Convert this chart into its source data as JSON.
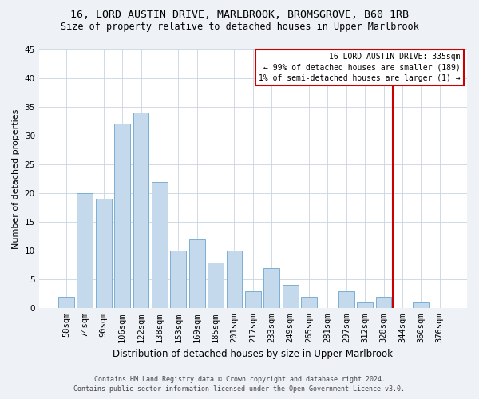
{
  "title1": "16, LORD AUSTIN DRIVE, MARLBROOK, BROMSGROVE, B60 1RB",
  "title2": "Size of property relative to detached houses in Upper Marlbrook",
  "xlabel": "Distribution of detached houses by size in Upper Marlbrook",
  "ylabel": "Number of detached properties",
  "categories": [
    "58sqm",
    "74sqm",
    "90sqm",
    "106sqm",
    "122sqm",
    "138sqm",
    "153sqm",
    "169sqm",
    "185sqm",
    "201sqm",
    "217sqm",
    "233sqm",
    "249sqm",
    "265sqm",
    "281sqm",
    "297sqm",
    "312sqm",
    "328sqm",
    "344sqm",
    "360sqm",
    "376sqm"
  ],
  "values": [
    2,
    20,
    19,
    32,
    34,
    22,
    10,
    12,
    8,
    10,
    3,
    7,
    4,
    2,
    0,
    3,
    1,
    2,
    0,
    1,
    0
  ],
  "bar_color": "#c5d9ed",
  "bar_edge_color": "#7aafd4",
  "vline_color": "#cc0000",
  "vline_pos": 17.5,
  "annotation_title": "16 LORD AUSTIN DRIVE: 335sqm",
  "annotation_line2": "← 99% of detached houses are smaller (189)",
  "annotation_line3": "1% of semi-detached houses are larger (1) →",
  "annotation_box_color": "#cc0000",
  "ylim": [
    0,
    45
  ],
  "yticks": [
    0,
    5,
    10,
    15,
    20,
    25,
    30,
    35,
    40,
    45
  ],
  "footer1": "Contains HM Land Registry data © Crown copyright and database right 2024.",
  "footer2": "Contains public sector information licensed under the Open Government Licence v3.0.",
  "bg_color": "#eef2f7",
  "plot_bg_color": "#ffffff",
  "grid_color": "#c8d4e0",
  "title1_fontsize": 9.5,
  "title2_fontsize": 8.5,
  "xlabel_fontsize": 8.5,
  "ylabel_fontsize": 8,
  "tick_fontsize": 7.5,
  "annotation_fontsize": 7,
  "footer_fontsize": 6
}
